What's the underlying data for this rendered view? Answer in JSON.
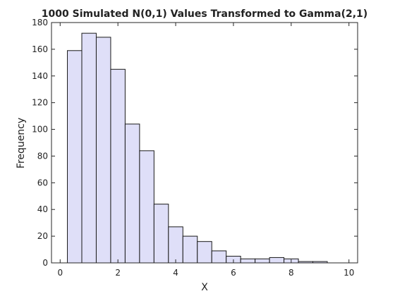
{
  "chart_data": {
    "type": "bar",
    "title": "1000 Simulated N(0,1) Values Transformed to Gamma(2,1)",
    "xlabel": "X",
    "ylabel": "Frequency",
    "xlim": [
      -0.3,
      10.3
    ],
    "ylim": [
      0,
      180
    ],
    "xticks": [
      0,
      2,
      4,
      6,
      8,
      10
    ],
    "yticks": [
      0,
      20,
      40,
      60,
      80,
      100,
      120,
      140,
      160,
      180
    ],
    "bin_width": 0.5,
    "bin_starts": [
      0.25,
      0.75,
      1.25,
      1.75,
      2.25,
      2.75,
      3.25,
      3.75,
      4.25,
      4.75,
      5.25,
      5.75,
      6.25,
      6.75,
      7.25,
      7.75,
      8.25,
      8.75
    ],
    "values": [
      159,
      172,
      169,
      145,
      104,
      84,
      44,
      27,
      20,
      16,
      9,
      5,
      3,
      3,
      4,
      3,
      1,
      1
    ],
    "grid": false,
    "colors": {
      "bar_fill": "#dfdff8",
      "bar_edge": "#1a1a1a",
      "axis": "#262626"
    }
  }
}
